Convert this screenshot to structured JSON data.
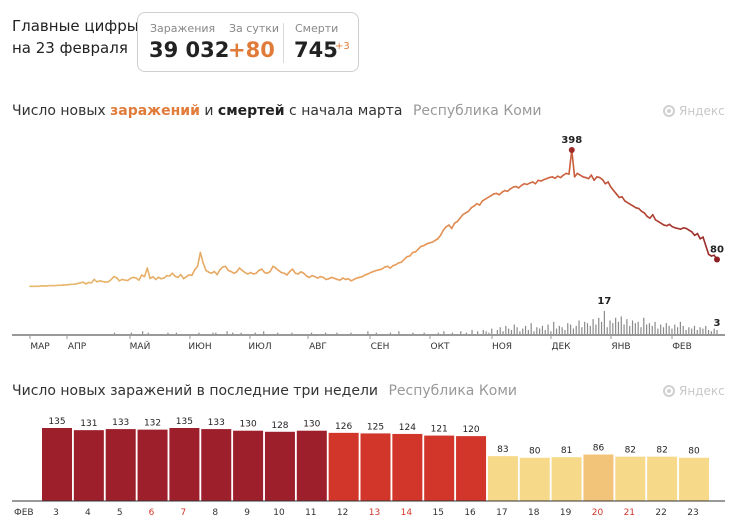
{
  "header": {
    "line1": "Главные цифры",
    "line2": "на 23 февраля"
  },
  "stats": {
    "cases_label": "Заражения",
    "cases_value": "39 032",
    "day_label": "За сутки",
    "day_value": "+80",
    "deaths_label": "Смерти",
    "deaths_value": "745",
    "deaths_delta": "+3"
  },
  "chart1_title": {
    "p1": "Число новых ",
    "p2": "заражений",
    "p3": " и ",
    "p4": "смертей",
    "p5": " с начала марта",
    "region": "Республика Коми"
  },
  "chart2_title": {
    "text": "Число новых заражений в последние три недели",
    "region": "Республика Коми"
  },
  "brand": "Яндекс",
  "colors": {
    "accent": "#e07b39",
    "dark_red": "#9e1f2c",
    "red": "#d2362b",
    "yellow": "#f7d98a",
    "light": "#f2c47a"
  },
  "chart_data": [
    {
      "type": "line",
      "x_ticks": [
        "МАР",
        "АПР",
        "МАЙ",
        "ИЮН",
        "ИЮЛ",
        "АВГ",
        "СЕН",
        "ОКТ",
        "НОЯ",
        "ДЕК",
        "ЯНВ",
        "ФЕВ"
      ],
      "series": [
        {
          "values": [
            2,
            2,
            2,
            2,
            3,
            3,
            3,
            4,
            4,
            4,
            5,
            5,
            6,
            6,
            7,
            8,
            8,
            10,
            12,
            14,
            9,
            13,
            12,
            22,
            15,
            18,
            16,
            14,
            15,
            21,
            30,
            27,
            18,
            22,
            20,
            19,
            25,
            28,
            26,
            20,
            35,
            30,
            55,
            25,
            30,
            22,
            28,
            24,
            26,
            33,
            32,
            40,
            31,
            28,
            36,
            24,
            30,
            35,
            34,
            50,
            60,
            100,
            70,
            48,
            43,
            40,
            45,
            36,
            50,
            58,
            60,
            48,
            45,
            40,
            44,
            55,
            48,
            42,
            38,
            42,
            38,
            40,
            48,
            52,
            42,
            40,
            45,
            60,
            55,
            48,
            42,
            40,
            35,
            45,
            52,
            40,
            38,
            44,
            40,
            32,
            28,
            33,
            30,
            26,
            30,
            28,
            22,
            24,
            28,
            25,
            22,
            20,
            26,
            22,
            24,
            18,
            22,
            26,
            28,
            30,
            35,
            38,
            42,
            45,
            48,
            50,
            52,
            58,
            60,
            55,
            62,
            65,
            70,
            72,
            80,
            88,
            90,
            100,
            102,
            110,
            118,
            120,
            125,
            128,
            130,
            135,
            140,
            150,
            165,
            175,
            180,
            170,
            185,
            190,
            200,
            210,
            215,
            220,
            230,
            235,
            242,
            238,
            250,
            255,
            260,
            265,
            270,
            272,
            268,
            275,
            280,
            278,
            285,
            290,
            292,
            288,
            295,
            300,
            298,
            302,
            305,
            300,
            310,
            308,
            312,
            315,
            318,
            320,
            316,
            322,
            318,
            325,
            330,
            328,
            398,
            320,
            330,
            325,
            320,
            318,
            315,
            325,
            310,
            320,
            318,
            312,
            300,
            305,
            290,
            280,
            270,
            260,
            262,
            250,
            245,
            240,
            235,
            230,
            228,
            220,
            215,
            205,
            200,
            210,
            195,
            190,
            185,
            180,
            178,
            182,
            175,
            172,
            170,
            168,
            172,
            170,
            165,
            160,
            150,
            155,
            140,
            145,
            120,
            95,
            90,
            92,
            80
          ]
        }
      ],
      "deaths": [
        0,
        0,
        0,
        0,
        0,
        0,
        0,
        0,
        0,
        0,
        0,
        0,
        0,
        0,
        0,
        0,
        0,
        0,
        0,
        0,
        0,
        0,
        0,
        0,
        0,
        0,
        0,
        0,
        0,
        0,
        1,
        0,
        0,
        0,
        0,
        0,
        1,
        0,
        0,
        0,
        2,
        0,
        1,
        0,
        0,
        0,
        0,
        0,
        0,
        1,
        0,
        0,
        1,
        0,
        0,
        0,
        0,
        0,
        0,
        0,
        1,
        0,
        0,
        0,
        0,
        1,
        1,
        0,
        0,
        0,
        2,
        0,
        1,
        0,
        0,
        1,
        0,
        0,
        0,
        0,
        1,
        0,
        0,
        2,
        0,
        0,
        0,
        0,
        1,
        0,
        0,
        0,
        0,
        1,
        0,
        0,
        0,
        0,
        0,
        0,
        1,
        0,
        0,
        0,
        0,
        1,
        0,
        0,
        0,
        1,
        0,
        0,
        0,
        0,
        1,
        0,
        0,
        0,
        0,
        0,
        2,
        0,
        0,
        1,
        0,
        0,
        0,
        0,
        1,
        0,
        0,
        2,
        0,
        0,
        0,
        0,
        1,
        0,
        0,
        0,
        1,
        0,
        0,
        0,
        0,
        1,
        0,
        2,
        0,
        0,
        1,
        0,
        0,
        2,
        0,
        1,
        0,
        3,
        0,
        2,
        0,
        3,
        2,
        1,
        4,
        0,
        3,
        5,
        2,
        6,
        4,
        3,
        7,
        5,
        2,
        4,
        6,
        3,
        8,
        2,
        5,
        4,
        6,
        3,
        7,
        2,
        9,
        4,
        6,
        5,
        3,
        8,
        7,
        4,
        6,
        10,
        5,
        9,
        8,
        6,
        11,
        7,
        12,
        9,
        17,
        5,
        10,
        8,
        12,
        9,
        13,
        7,
        11,
        6,
        10,
        8,
        9,
        5,
        12,
        7,
        8,
        6,
        9,
        4,
        7,
        5,
        8,
        6,
        4,
        7,
        5,
        9,
        6,
        3,
        5,
        4,
        6,
        3,
        5,
        4,
        6,
        3,
        2,
        4,
        3
      ]
    },
    {
      "type": "bar",
      "categories": [
        "3",
        "4",
        "5",
        "6",
        "7",
        "8",
        "9",
        "10",
        "11",
        "12",
        "13",
        "14",
        "15",
        "16",
        "17",
        "18",
        "19",
        "20",
        "21",
        "22",
        "23"
      ],
      "x_prefix": "ФЕВ",
      "values": [
        135,
        131,
        133,
        132,
        135,
        133,
        130,
        128,
        130,
        126,
        125,
        124,
        121,
        120,
        83,
        80,
        81,
        86,
        82,
        82,
        80
      ],
      "weekend_labels": [
        "6",
        "7",
        "13",
        "14",
        "20",
        "21"
      ]
    }
  ],
  "annotations": {
    "peak": "398",
    "last_case": "80",
    "deaths_peak": "17",
    "last_death": "3"
  }
}
